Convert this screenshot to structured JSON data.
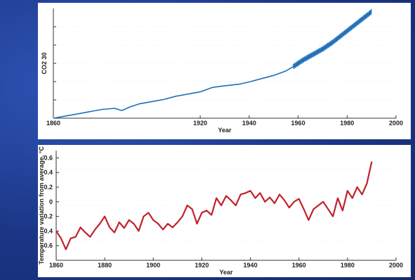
{
  "chart_data": [
    {
      "type": "line",
      "title": "",
      "xlabel": "Year",
      "ylabel": "CO2 30",
      "xlim": [
        1860,
        2000
      ],
      "ylim": [
        0,
        1
      ],
      "x_ticks": [
        "1860",
        "1920",
        "1940",
        "1960",
        "1980",
        "2000"
      ],
      "x_tick_values": [
        1860,
        1920,
        1940,
        1960,
        1980,
        2000
      ],
      "grid": true,
      "line_color": "#1f6fb8",
      "series": [
        {
          "name": "",
          "x": [
            1860,
            1865,
            1870,
            1875,
            1880,
            1885,
            1888,
            1891,
            1895,
            1900,
            1905,
            1910,
            1915,
            1920,
            1925,
            1928,
            1932,
            1936,
            1940,
            1945,
            1950,
            1955,
            1958,
            1962,
            1966,
            1970,
            1974,
            1978,
            1982,
            1986,
            1990
          ],
          "values": [
            0.0,
            0.02,
            0.04,
            0.06,
            0.08,
            0.09,
            0.07,
            0.1,
            0.13,
            0.15,
            0.17,
            0.2,
            0.22,
            0.24,
            0.28,
            0.29,
            0.3,
            0.31,
            0.33,
            0.36,
            0.39,
            0.43,
            0.47,
            0.53,
            0.58,
            0.63,
            0.69,
            0.76,
            0.83,
            0.9,
            0.97
          ]
        }
      ]
    },
    {
      "type": "line",
      "title": "",
      "xlabel": "Year",
      "ylabel": "Temperature variation from average, °C",
      "xlim": [
        1860,
        2000
      ],
      "ylim": [
        -0.8,
        0.7
      ],
      "x_ticks": [
        "1860",
        "1880",
        "1900",
        "1920",
        "1940",
        "1960",
        "1980",
        "2000"
      ],
      "x_tick_values": [
        1860,
        1880,
        1900,
        1920,
        1940,
        1960,
        1980,
        2000
      ],
      "y_ticks": [
        "0.6",
        "0.4",
        "0.2",
        "0",
        "-0.2",
        "-0.4",
        "-0.6"
      ],
      "y_tick_values": [
        0.6,
        0.4,
        0.2,
        0,
        -0.2,
        -0.4,
        -0.6
      ],
      "grid": true,
      "line_color": "#c0222b",
      "series": [
        {
          "name": "",
          "x": [
            1860,
            1862,
            1864,
            1866,
            1868,
            1870,
            1872,
            1874,
            1876,
            1878,
            1880,
            1882,
            1884,
            1886,
            1888,
            1890,
            1892,
            1894,
            1896,
            1898,
            1900,
            1902,
            1904,
            1906,
            1908,
            1910,
            1912,
            1914,
            1916,
            1918,
            1920,
            1922,
            1924,
            1926,
            1928,
            1930,
            1932,
            1934,
            1936,
            1938,
            1940,
            1942,
            1944,
            1946,
            1948,
            1950,
            1952,
            1954,
            1956,
            1958,
            1960,
            1962,
            1964,
            1966,
            1968,
            1970,
            1972,
            1974,
            1976,
            1978,
            1980,
            1982,
            1984,
            1986,
            1988,
            1990
          ],
          "values": [
            -0.4,
            -0.5,
            -0.65,
            -0.5,
            -0.48,
            -0.35,
            -0.42,
            -0.48,
            -0.38,
            -0.3,
            -0.2,
            -0.35,
            -0.42,
            -0.28,
            -0.36,
            -0.25,
            -0.3,
            -0.4,
            -0.2,
            -0.15,
            -0.25,
            -0.3,
            -0.38,
            -0.3,
            -0.35,
            -0.28,
            -0.2,
            -0.05,
            -0.1,
            -0.3,
            -0.15,
            -0.12,
            -0.18,
            0.05,
            -0.05,
            0.08,
            0.02,
            -0.05,
            0.1,
            0.12,
            0.15,
            0.05,
            0.12,
            0.0,
            0.06,
            -0.02,
            0.1,
            0.02,
            -0.08,
            0.0,
            0.04,
            -0.1,
            -0.25,
            -0.1,
            -0.05,
            0.0,
            -0.1,
            -0.2,
            0.05,
            -0.12,
            0.15,
            0.05,
            0.2,
            0.1,
            0.25,
            0.55
          ]
        }
      ]
    }
  ]
}
